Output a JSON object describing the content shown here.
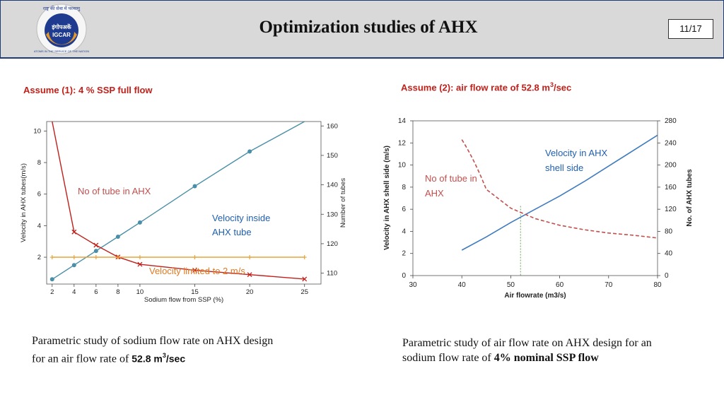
{
  "header": {
    "title": "Optimization studies of AHX",
    "page_number": "11/17",
    "logo": {
      "top_text": "राष्ट्र की सेवा में परमाणु",
      "center_hindi": "इंगोपअकें",
      "center_text": "IGCAR",
      "bottom_text": "ATOMS IN THE SERVICE OF THE NATION"
    }
  },
  "left": {
    "assumption": "Assume (1): 4 %  SSP full flow",
    "caption_line1": "Parametric study of sodium flow rate on AHX design",
    "caption_line2_prefix": "for an air flow rate of ",
    "caption_line2_bold": "52.8 m",
    "caption_sup": "3",
    "caption_suffix": "/sec"
  },
  "right": {
    "assumption_prefix": "Assume (2): air flow rate of 52.8 m",
    "assumption_sup": "3",
    "assumption_suffix": "/sec",
    "caption_line1": "Parametric study of air flow rate on AHX design for an",
    "caption_line2_prefix": "sodium flow rate of ",
    "caption_line2_bold": "4% nominal SSP flow"
  },
  "colors": {
    "header_bg": "#d9d9d9",
    "header_border": "#1f3b73",
    "accent_red": "#c0201a",
    "blue_series": "#3f7bbf",
    "teal_series": "#4a8fa8",
    "orange_series": "#e8a33a",
    "label_blue": "#1e5fb0",
    "label_red": "#c0504d",
    "label_orange": "#e07a1f"
  },
  "chart_data": [
    {
      "type": "line",
      "xlabel": "Sodium flow from SSP (%)",
      "ylabel": "Velocity in AHX tubes(m/s)",
      "y2label": "Number of tubes",
      "xticks": [
        2,
        4,
        6,
        8,
        10,
        15,
        20,
        25
      ],
      "yticks": [
        2,
        4,
        6,
        8,
        10
      ],
      "y2ticks": [
        110,
        120,
        130,
        140,
        150,
        160
      ],
      "xlim": [
        1.5,
        26.5
      ],
      "ylim": [
        0.3,
        10.6
      ],
      "y2lim": [
        106.3,
        161.5
      ],
      "series": [
        {
          "name": "Velocity inside AHX tube",
          "axis": "left",
          "marker": "circle",
          "x": [
            2,
            4,
            6,
            8,
            10,
            15,
            20,
            25
          ],
          "y": [
            0.6,
            1.5,
            2.4,
            3.3,
            4.2,
            6.5,
            8.7,
            11.0
          ]
        },
        {
          "name": "No of tube in AHX",
          "axis": "right",
          "marker": "x",
          "x": [
            2,
            4,
            6,
            8,
            10,
            15,
            20,
            25
          ],
          "y": [
            161.5,
            124,
            119.5,
            115.5,
            113,
            111,
            109.5,
            108
          ]
        },
        {
          "name": "Velocity limited to 2 m/s",
          "axis": "left",
          "marker": "plus",
          "x": [
            2,
            4,
            6,
            8,
            10,
            15,
            20,
            25
          ],
          "y": [
            2,
            2,
            2,
            2,
            2,
            2,
            2,
            2
          ]
        }
      ],
      "annotations": [
        "No of tube in AHX",
        "Velocity inside",
        "AHX tube",
        "Velocity limited to 2 m/s"
      ]
    },
    {
      "type": "line",
      "xlabel": "Air flowrate (m3/s)",
      "ylabel": "Velocity in AHX shell side (m/s)",
      "y2label": "No. of AHX tubes",
      "xticks": [
        30,
        40,
        50,
        60,
        70,
        80
      ],
      "yticks": [
        0,
        2,
        4,
        6,
        8,
        10,
        12,
        14
      ],
      "y2ticks": [
        0,
        40,
        80,
        120,
        160,
        200,
        240,
        280
      ],
      "xlim": [
        30,
        80
      ],
      "ylim": [
        0,
        14
      ],
      "y2lim": [
        0,
        280
      ],
      "series": [
        {
          "name": "Velocity in AHX shell side",
          "axis": "left",
          "x": [
            40,
            45,
            50,
            55,
            60,
            65,
            70,
            75,
            80
          ],
          "y": [
            2.3,
            3.5,
            4.8,
            6.0,
            7.2,
            8.5,
            9.9,
            11.3,
            12.7
          ]
        },
        {
          "name": "No of tube in AHX",
          "axis": "right",
          "dashed": true,
          "x": [
            40,
            45,
            50,
            55,
            60,
            65,
            70,
            75,
            80
          ],
          "y": [
            246,
            156,
            122,
            103,
            91,
            83,
            77,
            73,
            68
          ]
        }
      ],
      "marker_line_x": 52,
      "annotations": [
        "Velocity in AHX",
        "shell side",
        "No of tube in",
        "AHX"
      ]
    }
  ]
}
